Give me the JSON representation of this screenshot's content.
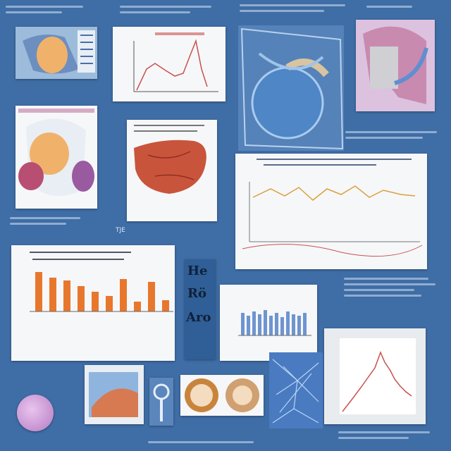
{
  "colors": {
    "background": "#3f6da5",
    "panel": "#f6f7f9",
    "line_red": "#c9514d",
    "line_gold": "#d8a13a",
    "bar_orange": "#e8772e",
    "bar_blue": "#6f95d0",
    "organ_peach": "#f0b26a",
    "organ_pink": "#c98ab0",
    "organ_liver": "#c9543c"
  },
  "icons": [
    "anatomy-illustration-1",
    "line-chart-top",
    "cross-section-illustration",
    "pink-anatomy-illustration",
    "organ-illustration",
    "liver-illustration",
    "wave-chart",
    "orange-bar-chart",
    "tile-letters",
    "blue-bar-chart",
    "peak-line-chart",
    "purple-circle",
    "thumbnail-anatomy",
    "magnifier-icon",
    "cell-images",
    "network-illustration"
  ],
  "tiles": {
    "line1": "He",
    "line2": "Rö",
    "line3": "Aro"
  },
  "captions": {
    "near_liver": "TJE"
  }
}
